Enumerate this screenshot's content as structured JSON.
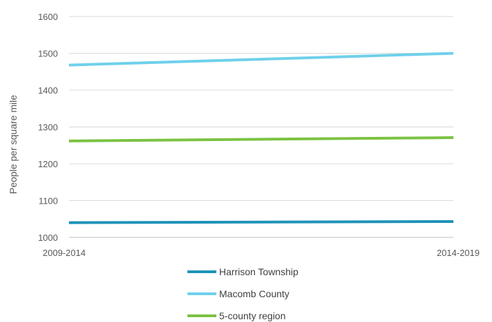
{
  "chart_data": {
    "type": "line",
    "categories": [
      "2009-2014",
      "2014-2019"
    ],
    "ylabel": "People per square mile",
    "ylim": [
      1000,
      1600
    ],
    "yticks": [
      1000,
      1100,
      1200,
      1300,
      1400,
      1500,
      1600
    ],
    "grid": true,
    "legend_position": "bottom",
    "series": [
      {
        "name": "Harrison Township",
        "values": [
          1040,
          1043
        ],
        "color": "#1F93B8"
      },
      {
        "name": "Macomb County",
        "values": [
          1468,
          1500
        ],
        "color": "#6FD0EB"
      },
      {
        "name": "5-county region",
        "values": [
          1262,
          1271
        ],
        "color": "#7CC242"
      }
    ]
  }
}
